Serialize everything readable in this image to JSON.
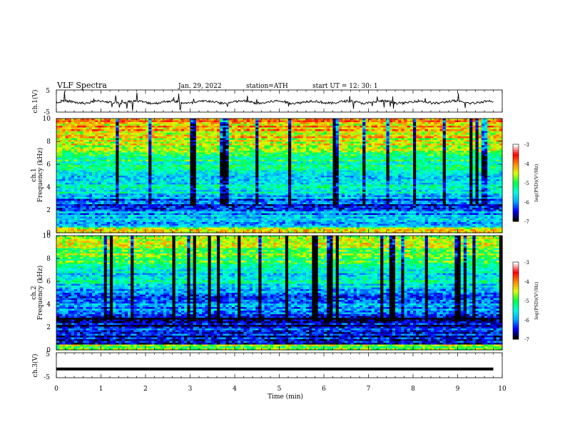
{
  "header": {
    "title": "VLF  Spectra",
    "date": "Jan. 29, 2022",
    "station": "station=ATH",
    "start": "start  UT  =   12: 30: 1"
  },
  "chart_data": [
    {
      "type": "line",
      "panel": "ch1-waveform",
      "ylabel": "ch.1(V)",
      "ylim": [
        -5,
        5
      ],
      "yticks": [
        "5",
        "-5"
      ],
      "xlim": [
        0,
        10
      ],
      "description_level": -0.5
    },
    {
      "type": "heatmap",
      "panel": "ch1-spectrogram",
      "ylabel_line1": "ch.1",
      "ylabel_line2": "Frequency  (kHz)",
      "ylim": [
        0,
        10
      ],
      "yticks": [
        "0",
        "2",
        "4",
        "6",
        "8",
        "10"
      ],
      "xlim": [
        0,
        10
      ],
      "colorbar": {
        "label": "log(PSD)(V²/Hz)",
        "ticks": [
          "-3",
          "-4",
          "-5",
          "-6",
          "-7"
        ],
        "range": [
          -7,
          -3
        ]
      }
    },
    {
      "type": "heatmap",
      "panel": "ch2-spectrogram",
      "ylabel_line1": "ch.2",
      "ylabel_line2": "Frequency  (kHz)",
      "ylim": [
        0,
        10
      ],
      "yticks": [
        "0",
        "2",
        "4",
        "6",
        "8",
        "10"
      ],
      "xlim": [
        0,
        10
      ],
      "colorbar": {
        "label": "log(PSD)(V²/Hz)",
        "ticks": [
          "-3",
          "-4",
          "-5",
          "-6",
          "-7"
        ],
        "range": [
          -7,
          -3
        ]
      }
    },
    {
      "type": "line",
      "panel": "ch3-waveform",
      "ylabel": "ch.3(V)",
      "ylim": [
        -5,
        5
      ],
      "yticks": [
        "5",
        "-5"
      ],
      "xlim": [
        0,
        9.8
      ],
      "level": -1.5
    }
  ],
  "xaxis": {
    "label": "Time  (min)",
    "ticks": [
      "0",
      "1",
      "2",
      "3",
      "4",
      "5",
      "6",
      "7",
      "8",
      "9",
      "10"
    ]
  },
  "colors": {
    "colormap": [
      "#000000",
      "#0000ff",
      "#00aaff",
      "#00ffdd",
      "#00ff44",
      "#ddff00",
      "#ff8800",
      "#ff0000",
      "#ffffff"
    ]
  }
}
